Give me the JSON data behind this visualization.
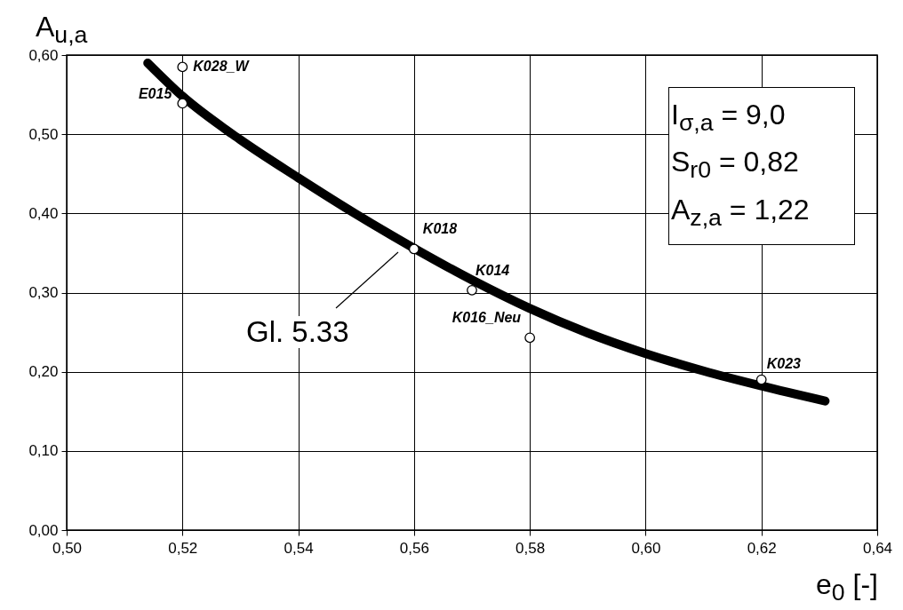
{
  "chart_data": {
    "type": "line",
    "xlabel": "e$_{0}$ [-]",
    "ylabel": "A$_{u,a}$",
    "xlim": [
      0.5,
      0.64
    ],
    "ylim": [
      0,
      0.6
    ],
    "xticks": [
      {
        "value": 0.5,
        "label": "0,50"
      },
      {
        "value": 0.52,
        "label": "0,52"
      },
      {
        "value": 0.54,
        "label": "0,54"
      },
      {
        "value": 0.56,
        "label": "0,56"
      },
      {
        "value": 0.58,
        "label": "0,58"
      },
      {
        "value": 0.6,
        "label": "0,60"
      },
      {
        "value": 0.62,
        "label": "0,62"
      },
      {
        "value": 0.64,
        "label": "0,64"
      }
    ],
    "yticks": [
      {
        "value": 0,
        "label": "0,00"
      },
      {
        "value": 0.1,
        "label": "0,10"
      },
      {
        "value": 0.2,
        "label": "0,20"
      },
      {
        "value": 0.3,
        "label": "0,30"
      },
      {
        "value": 0.4,
        "label": "0,40"
      },
      {
        "value": 0.5,
        "label": "0,50"
      },
      {
        "value": 0.6,
        "label": "0,60"
      }
    ],
    "grid": true,
    "series": [
      {
        "type": "line",
        "color": "#000000",
        "x": [
          0.514,
          0.52,
          0.53,
          0.54,
          0.55,
          0.56,
          0.57,
          0.58,
          0.59,
          0.6,
          0.61,
          0.62,
          0.631
        ],
        "values": [
          0.59,
          0.548,
          0.493,
          0.445,
          0.399,
          0.356,
          0.316,
          0.28,
          0.249,
          0.223,
          0.201,
          0.182,
          0.163
        ]
      },
      {
        "type": "scatter",
        "color": "#000000",
        "marker": "circle",
        "x": [
          0.52,
          0.52,
          0.56,
          0.57,
          0.58,
          0.62
        ],
        "values": [
          0.585,
          0.539,
          0.355,
          0.303,
          0.243,
          0.19
        ]
      }
    ],
    "annotations": [
      {
        "text": "K028_W",
        "x": 0.52,
        "y": 0.585
      },
      {
        "text": "E015",
        "x": 0.52,
        "y": 0.539
      },
      {
        "text": "K018",
        "x": 0.56,
        "y": 0.355
      },
      {
        "text": "K014",
        "x": 0.57,
        "y": 0.303
      },
      {
        "text": "K016_Neu",
        "x": 0.58,
        "y": 0.243
      },
      {
        "text": "K023",
        "x": 0.62,
        "y": 0.19
      },
      "Gl. 5.33",
      "I$_{σ,a}$ = 9,0",
      "S$_{r0}$ = 0,82",
      "A$_{z,a}$ = 1,22"
    ]
  }
}
